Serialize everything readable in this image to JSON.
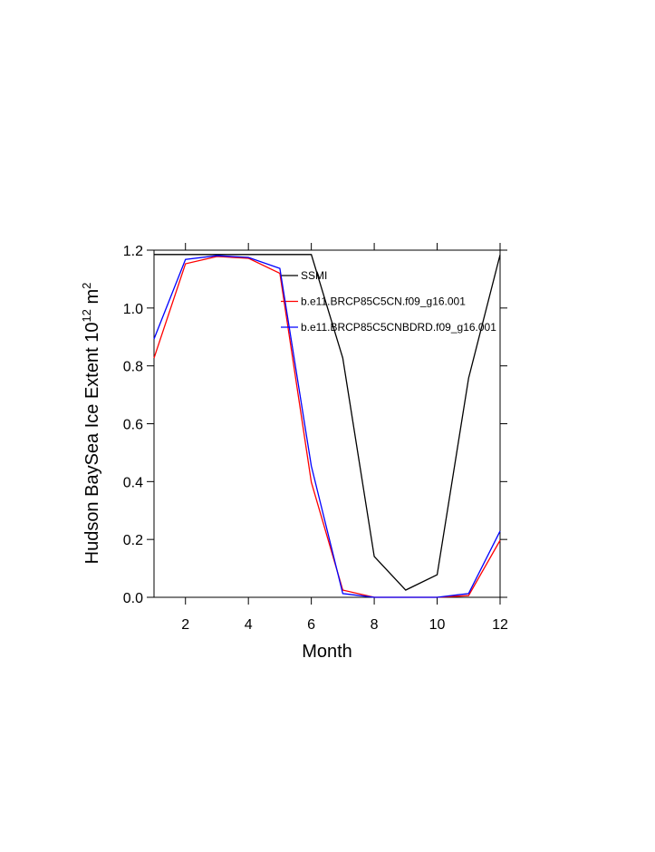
{
  "chart_data": {
    "type": "line",
    "xlabel": "Month",
    "ylabel": "Hudson BaySea Ice Extent 10",
    "ylabel_exponent": "12",
    "ylabel_unit": " m",
    "ylabel_unit_exponent": "2",
    "x": [
      1,
      2,
      3,
      4,
      5,
      6,
      7,
      8,
      9,
      10,
      11,
      12
    ],
    "xlim": [
      1,
      12
    ],
    "xticks": [
      2,
      4,
      6,
      8,
      10,
      12
    ],
    "ylim": [
      0,
      1.2
    ],
    "yticks": [
      {
        "value": 0,
        "label": "0.0"
      },
      0.2,
      0.4,
      0.6,
      0.8,
      {
        "value": 1,
        "label": "1.0"
      },
      1.2
    ],
    "series": [
      {
        "name": "SSMI",
        "color": "#000000",
        "values": [
          1.185,
          1.185,
          1.185,
          1.185,
          1.185,
          1.185,
          0.827,
          0.141,
          0.025,
          0.078,
          0.758,
          1.184
        ]
      },
      {
        "name": "b.e11.BRCP85C5CN.f09_g16.001",
        "color": "#ff0000",
        "values": [
          0.827,
          1.153,
          1.178,
          1.172,
          1.12,
          0.398,
          0.025,
          0.0,
          0.0,
          0.0,
          0.006,
          0.197
        ]
      },
      {
        "name": "b.e11.BRCP85C5CNBDRD.f09_g16.001",
        "color": "#0000ff",
        "values": [
          0.893,
          1.168,
          1.181,
          1.175,
          1.137,
          0.454,
          0.013,
          0.0,
          0.0,
          0.0,
          0.013,
          0.229
        ]
      }
    ]
  }
}
